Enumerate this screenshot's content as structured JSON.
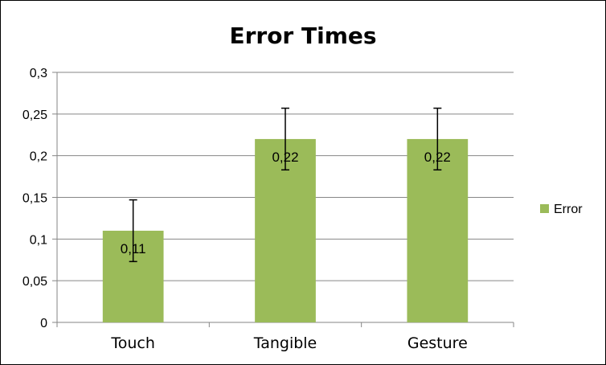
{
  "chart_data": {
    "type": "bar",
    "title": "Error Times",
    "categories": [
      "Touch",
      "Tangible",
      "Gesture"
    ],
    "series": [
      {
        "name": "Error",
        "values": [
          0.11,
          0.22,
          0.22
        ],
        "error_low": [
          0.073,
          0.183,
          0.183
        ],
        "error_high": [
          0.147,
          0.257,
          0.257
        ],
        "data_labels": [
          "0,11",
          "0,22",
          "0,22"
        ],
        "color": "#9BBB59"
      }
    ],
    "ylim": [
      0,
      0.3
    ],
    "yticks": [
      0,
      0.05,
      0.1,
      0.15,
      0.2,
      0.25,
      0.3
    ],
    "ytick_labels": [
      "0",
      "0,05",
      "0,1",
      "0,15",
      "0,2",
      "0,25",
      "0,3"
    ],
    "grid": true,
    "legend_position": "right"
  }
}
